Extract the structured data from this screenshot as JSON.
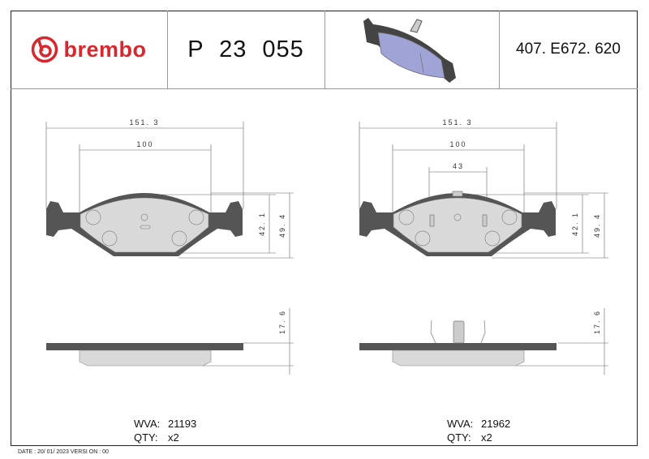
{
  "header": {
    "brand": "brembo",
    "part_number": "P 23 055",
    "reference": "407. E672. 620",
    "product_image": "brake-pad-3d-render"
  },
  "left_view": {
    "width_overall": "151. 3",
    "width_inner": "100",
    "height_inner": "42. 1",
    "height_overall": "49. 4",
    "thickness": "17. 6",
    "wva_label": "WVA:",
    "wva": "21193",
    "qty_label": "QTY:",
    "qty": "x2"
  },
  "right_view": {
    "width_overall": "151. 3",
    "width_inner": "100",
    "clip_width": "43",
    "height_inner": "42. 1",
    "height_overall": "49. 4",
    "thickness": "17. 6",
    "wva_label": "WVA:",
    "wva": "21962",
    "qty_label": "QTY:",
    "qty": "x2"
  },
  "footer": {
    "text": "DATE :  20/ 01/ 2023  VERSI ON :   00"
  },
  "colors": {
    "brand": "#d9272e",
    "backing_plate": "#555555",
    "friction": "#d9d9d9",
    "render": "#9fa3d6"
  }
}
